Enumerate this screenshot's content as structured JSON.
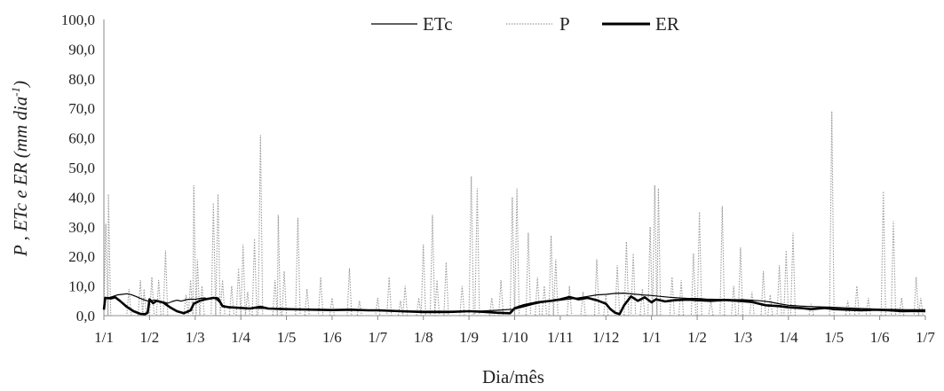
{
  "chart_data": {
    "type": "line",
    "xlabel": "Dia/mês",
    "ylabel_parts": {
      "text": "P , ETc  e ER  (mm dia",
      "superscript": "-1",
      "close": ")"
    },
    "ylim": [
      0,
      100
    ],
    "ytick_step": 10,
    "ytick_labels": [
      "0,0",
      "10,0",
      "20,0",
      "30,0",
      "40,0",
      "50,0",
      "60,0",
      "70,0",
      "80,0",
      "90,0",
      "100,0"
    ],
    "x_tick_labels": [
      "1/1",
      "1/2",
      "1/3",
      "1/4",
      "1/5",
      "1/6",
      "1/7",
      "1/8",
      "1/9",
      "1/10",
      "1/11",
      "1/12",
      "1/1",
      "1/2",
      "1/3",
      "1/4",
      "1/5",
      "1/6",
      "1/7"
    ],
    "grid": false,
    "legend_position": "top",
    "legend": [
      "ETc",
      "P",
      "ER"
    ],
    "series": [
      {
        "name": "ETc",
        "style": "thin-solid",
        "color": "#000000",
        "points": [
          [
            0,
            2.8
          ],
          [
            0.03,
            6.2
          ],
          [
            0.1,
            6.0
          ],
          [
            0.2,
            6.5
          ],
          [
            0.3,
            7.0
          ],
          [
            0.4,
            7.2
          ],
          [
            0.5,
            7.4
          ],
          [
            0.6,
            7.1
          ],
          [
            0.7,
            6.5
          ],
          [
            0.8,
            5.8
          ],
          [
            0.9,
            5.2
          ],
          [
            1.0,
            4.8
          ],
          [
            1.1,
            5.3
          ],
          [
            1.2,
            5.0
          ],
          [
            1.3,
            4.6
          ],
          [
            1.4,
            4.2
          ],
          [
            1.5,
            4.8
          ],
          [
            1.6,
            5.2
          ],
          [
            1.7,
            4.9
          ],
          [
            1.8,
            5.4
          ],
          [
            1.9,
            5.6
          ],
          [
            2.0,
            5.5
          ],
          [
            2.1,
            5.8
          ],
          [
            2.2,
            6.0
          ],
          [
            2.3,
            5.6
          ],
          [
            2.4,
            6.2
          ],
          [
            2.5,
            5.0
          ],
          [
            2.6,
            3.5
          ],
          [
            2.7,
            3.0
          ],
          [
            2.8,
            2.8
          ],
          [
            2.9,
            2.7
          ],
          [
            3.0,
            2.6
          ],
          [
            3.3,
            2.5
          ],
          [
            3.6,
            2.4
          ],
          [
            4.0,
            2.3
          ],
          [
            4.3,
            2.2
          ],
          [
            4.6,
            2.1
          ],
          [
            5.0,
            2.0
          ],
          [
            5.3,
            1.9
          ],
          [
            5.6,
            1.8
          ],
          [
            6.0,
            1.8
          ],
          [
            6.3,
            1.7
          ],
          [
            6.6,
            1.6
          ],
          [
            7.0,
            1.5
          ],
          [
            7.3,
            1.5
          ],
          [
            7.6,
            1.5
          ],
          [
            8.0,
            1.5
          ],
          [
            8.3,
            1.6
          ],
          [
            8.6,
            1.8
          ],
          [
            9.0,
            2.2
          ],
          [
            9.2,
            3.0
          ],
          [
            9.4,
            3.8
          ],
          [
            9.6,
            4.5
          ],
          [
            9.8,
            5.0
          ],
          [
            10.0,
            5.2
          ],
          [
            10.2,
            5.6
          ],
          [
            10.4,
            6.0
          ],
          [
            10.6,
            6.5
          ],
          [
            10.8,
            7.0
          ],
          [
            11.0,
            7.2
          ],
          [
            11.2,
            7.5
          ],
          [
            11.4,
            7.6
          ],
          [
            11.6,
            7.3
          ],
          [
            11.8,
            7.0
          ],
          [
            12.0,
            6.8
          ],
          [
            12.2,
            6.5
          ],
          [
            12.4,
            6.2
          ],
          [
            12.6,
            6.0
          ],
          [
            12.8,
            5.8
          ],
          [
            13.0,
            5.8
          ],
          [
            13.2,
            5.6
          ],
          [
            13.4,
            5.5
          ],
          [
            13.6,
            5.5
          ],
          [
            13.8,
            5.4
          ],
          [
            14.0,
            5.4
          ],
          [
            14.2,
            5.2
          ],
          [
            14.4,
            5.0
          ],
          [
            14.6,
            4.6
          ],
          [
            14.8,
            4.0
          ],
          [
            15.0,
            3.5
          ],
          [
            15.3,
            3.2
          ],
          [
            15.6,
            3.0
          ],
          [
            16.0,
            2.8
          ],
          [
            16.3,
            2.6
          ],
          [
            16.6,
            2.4
          ],
          [
            17.0,
            2.2
          ],
          [
            17.3,
            2.1
          ],
          [
            17.6,
            2.0
          ],
          [
            18.0,
            2.0
          ]
        ]
      },
      {
        "name": "P",
        "style": "dotted",
        "color": "#9a9a9a",
        "spikes": [
          [
            0.04,
            31
          ],
          [
            0.1,
            41
          ],
          [
            0.55,
            9
          ],
          [
            0.8,
            12
          ],
          [
            0.88,
            9
          ],
          [
            1.05,
            13
          ],
          [
            1.2,
            12
          ],
          [
            1.35,
            22
          ],
          [
            1.8,
            7
          ],
          [
            1.9,
            12
          ],
          [
            1.97,
            44
          ],
          [
            2.05,
            19
          ],
          [
            2.15,
            10
          ],
          [
            2.4,
            38
          ],
          [
            2.5,
            41
          ],
          [
            2.6,
            12
          ],
          [
            2.8,
            10
          ],
          [
            2.95,
            16
          ],
          [
            3.05,
            24
          ],
          [
            3.15,
            8
          ],
          [
            3.3,
            26
          ],
          [
            3.43,
            61
          ],
          [
            3.75,
            12
          ],
          [
            3.82,
            34
          ],
          [
            3.95,
            15
          ],
          [
            4.25,
            33
          ],
          [
            4.45,
            9
          ],
          [
            4.75,
            13
          ],
          [
            5.0,
            6
          ],
          [
            5.38,
            16
          ],
          [
            5.6,
            5
          ],
          [
            6.0,
            6
          ],
          [
            6.25,
            13
          ],
          [
            6.5,
            5
          ],
          [
            6.6,
            10
          ],
          [
            6.9,
            6
          ],
          [
            7.0,
            24
          ],
          [
            7.2,
            34
          ],
          [
            7.3,
            12
          ],
          [
            7.5,
            18
          ],
          [
            7.85,
            10
          ],
          [
            8.05,
            47
          ],
          [
            8.18,
            43
          ],
          [
            8.5,
            6
          ],
          [
            8.7,
            12
          ],
          [
            8.95,
            40
          ],
          [
            9.05,
            43
          ],
          [
            9.3,
            28
          ],
          [
            9.5,
            13
          ],
          [
            9.65,
            10
          ],
          [
            9.8,
            27
          ],
          [
            9.9,
            19
          ],
          [
            10.2,
            10
          ],
          [
            10.5,
            8
          ],
          [
            10.8,
            19
          ],
          [
            11.0,
            7
          ],
          [
            11.25,
            17
          ],
          [
            11.45,
            25
          ],
          [
            11.6,
            21
          ],
          [
            11.8,
            9
          ],
          [
            11.97,
            30
          ],
          [
            12.07,
            44
          ],
          [
            12.15,
            43
          ],
          [
            12.45,
            13
          ],
          [
            12.65,
            12
          ],
          [
            12.92,
            21
          ],
          [
            13.05,
            35
          ],
          [
            13.3,
            5
          ],
          [
            13.55,
            37
          ],
          [
            13.8,
            10
          ],
          [
            13.95,
            23
          ],
          [
            14.2,
            8
          ],
          [
            14.45,
            15
          ],
          [
            14.6,
            7
          ],
          [
            14.8,
            17
          ],
          [
            14.95,
            22
          ],
          [
            15.1,
            28
          ],
          [
            15.5,
            4
          ],
          [
            15.95,
            69
          ],
          [
            16.3,
            5
          ],
          [
            16.5,
            10
          ],
          [
            16.75,
            6
          ],
          [
            17.08,
            42
          ],
          [
            17.3,
            32
          ],
          [
            17.48,
            6
          ],
          [
            17.8,
            13
          ],
          [
            17.9,
            6
          ]
        ]
      },
      {
        "name": "ER",
        "style": "thick-solid",
        "color": "#000000",
        "points": [
          [
            0,
            2.0
          ],
          [
            0.03,
            6.0
          ],
          [
            0.15,
            5.8
          ],
          [
            0.25,
            6.2
          ],
          [
            0.35,
            5.0
          ],
          [
            0.5,
            3.0
          ],
          [
            0.65,
            1.5
          ],
          [
            0.8,
            0.6
          ],
          [
            0.9,
            0.5
          ],
          [
            0.96,
            1.0
          ],
          [
            1.0,
            5.5
          ],
          [
            1.08,
            4.2
          ],
          [
            1.15,
            5.0
          ],
          [
            1.3,
            4.4
          ],
          [
            1.45,
            2.8
          ],
          [
            1.6,
            1.5
          ],
          [
            1.75,
            0.8
          ],
          [
            1.9,
            1.8
          ],
          [
            1.97,
            4.0
          ],
          [
            2.1,
            5.0
          ],
          [
            2.25,
            5.6
          ],
          [
            2.4,
            6.0
          ],
          [
            2.5,
            5.8
          ],
          [
            2.6,
            3.2
          ],
          [
            2.75,
            2.8
          ],
          [
            3.0,
            2.6
          ],
          [
            3.2,
            2.4
          ],
          [
            3.43,
            3.0
          ],
          [
            3.6,
            2.4
          ],
          [
            4.0,
            2.2
          ],
          [
            4.3,
            2.1
          ],
          [
            4.6,
            2.0
          ],
          [
            5.0,
            1.9
          ],
          [
            5.4,
            2.0
          ],
          [
            5.8,
            1.8
          ],
          [
            6.0,
            1.8
          ],
          [
            6.5,
            1.5
          ],
          [
            7.0,
            1.2
          ],
          [
            7.5,
            1.2
          ],
          [
            8.0,
            1.5
          ],
          [
            8.3,
            1.3
          ],
          [
            8.6,
            1.0
          ],
          [
            8.9,
            0.8
          ],
          [
            9.0,
            2.5
          ],
          [
            9.2,
            3.5
          ],
          [
            9.5,
            4.5
          ],
          [
            9.8,
            5.0
          ],
          [
            10.0,
            5.5
          ],
          [
            10.2,
            6.3
          ],
          [
            10.4,
            5.5
          ],
          [
            10.6,
            6.0
          ],
          [
            10.8,
            5.2
          ],
          [
            11.0,
            4.0
          ],
          [
            11.1,
            2.2
          ],
          [
            11.2,
            1.0
          ],
          [
            11.3,
            0.5
          ],
          [
            11.4,
            3.5
          ],
          [
            11.55,
            6.5
          ],
          [
            11.7,
            5.0
          ],
          [
            11.85,
            6.2
          ],
          [
            12.0,
            4.5
          ],
          [
            12.1,
            5.5
          ],
          [
            12.3,
            4.8
          ],
          [
            12.5,
            5.2
          ],
          [
            12.8,
            5.4
          ],
          [
            13.0,
            5.2
          ],
          [
            13.3,
            5.0
          ],
          [
            13.6,
            5.3
          ],
          [
            13.9,
            5.0
          ],
          [
            14.2,
            4.6
          ],
          [
            14.5,
            3.5
          ],
          [
            14.8,
            3.2
          ],
          [
            15.0,
            2.8
          ],
          [
            15.3,
            2.5
          ],
          [
            15.5,
            2.2
          ],
          [
            15.8,
            2.6
          ],
          [
            16.0,
            2.2
          ],
          [
            16.3,
            2.0
          ],
          [
            16.6,
            1.8
          ],
          [
            16.9,
            2.0
          ],
          [
            17.2,
            1.8
          ],
          [
            17.5,
            1.5
          ],
          [
            17.8,
            1.6
          ],
          [
            18.0,
            1.5
          ]
        ]
      }
    ]
  }
}
